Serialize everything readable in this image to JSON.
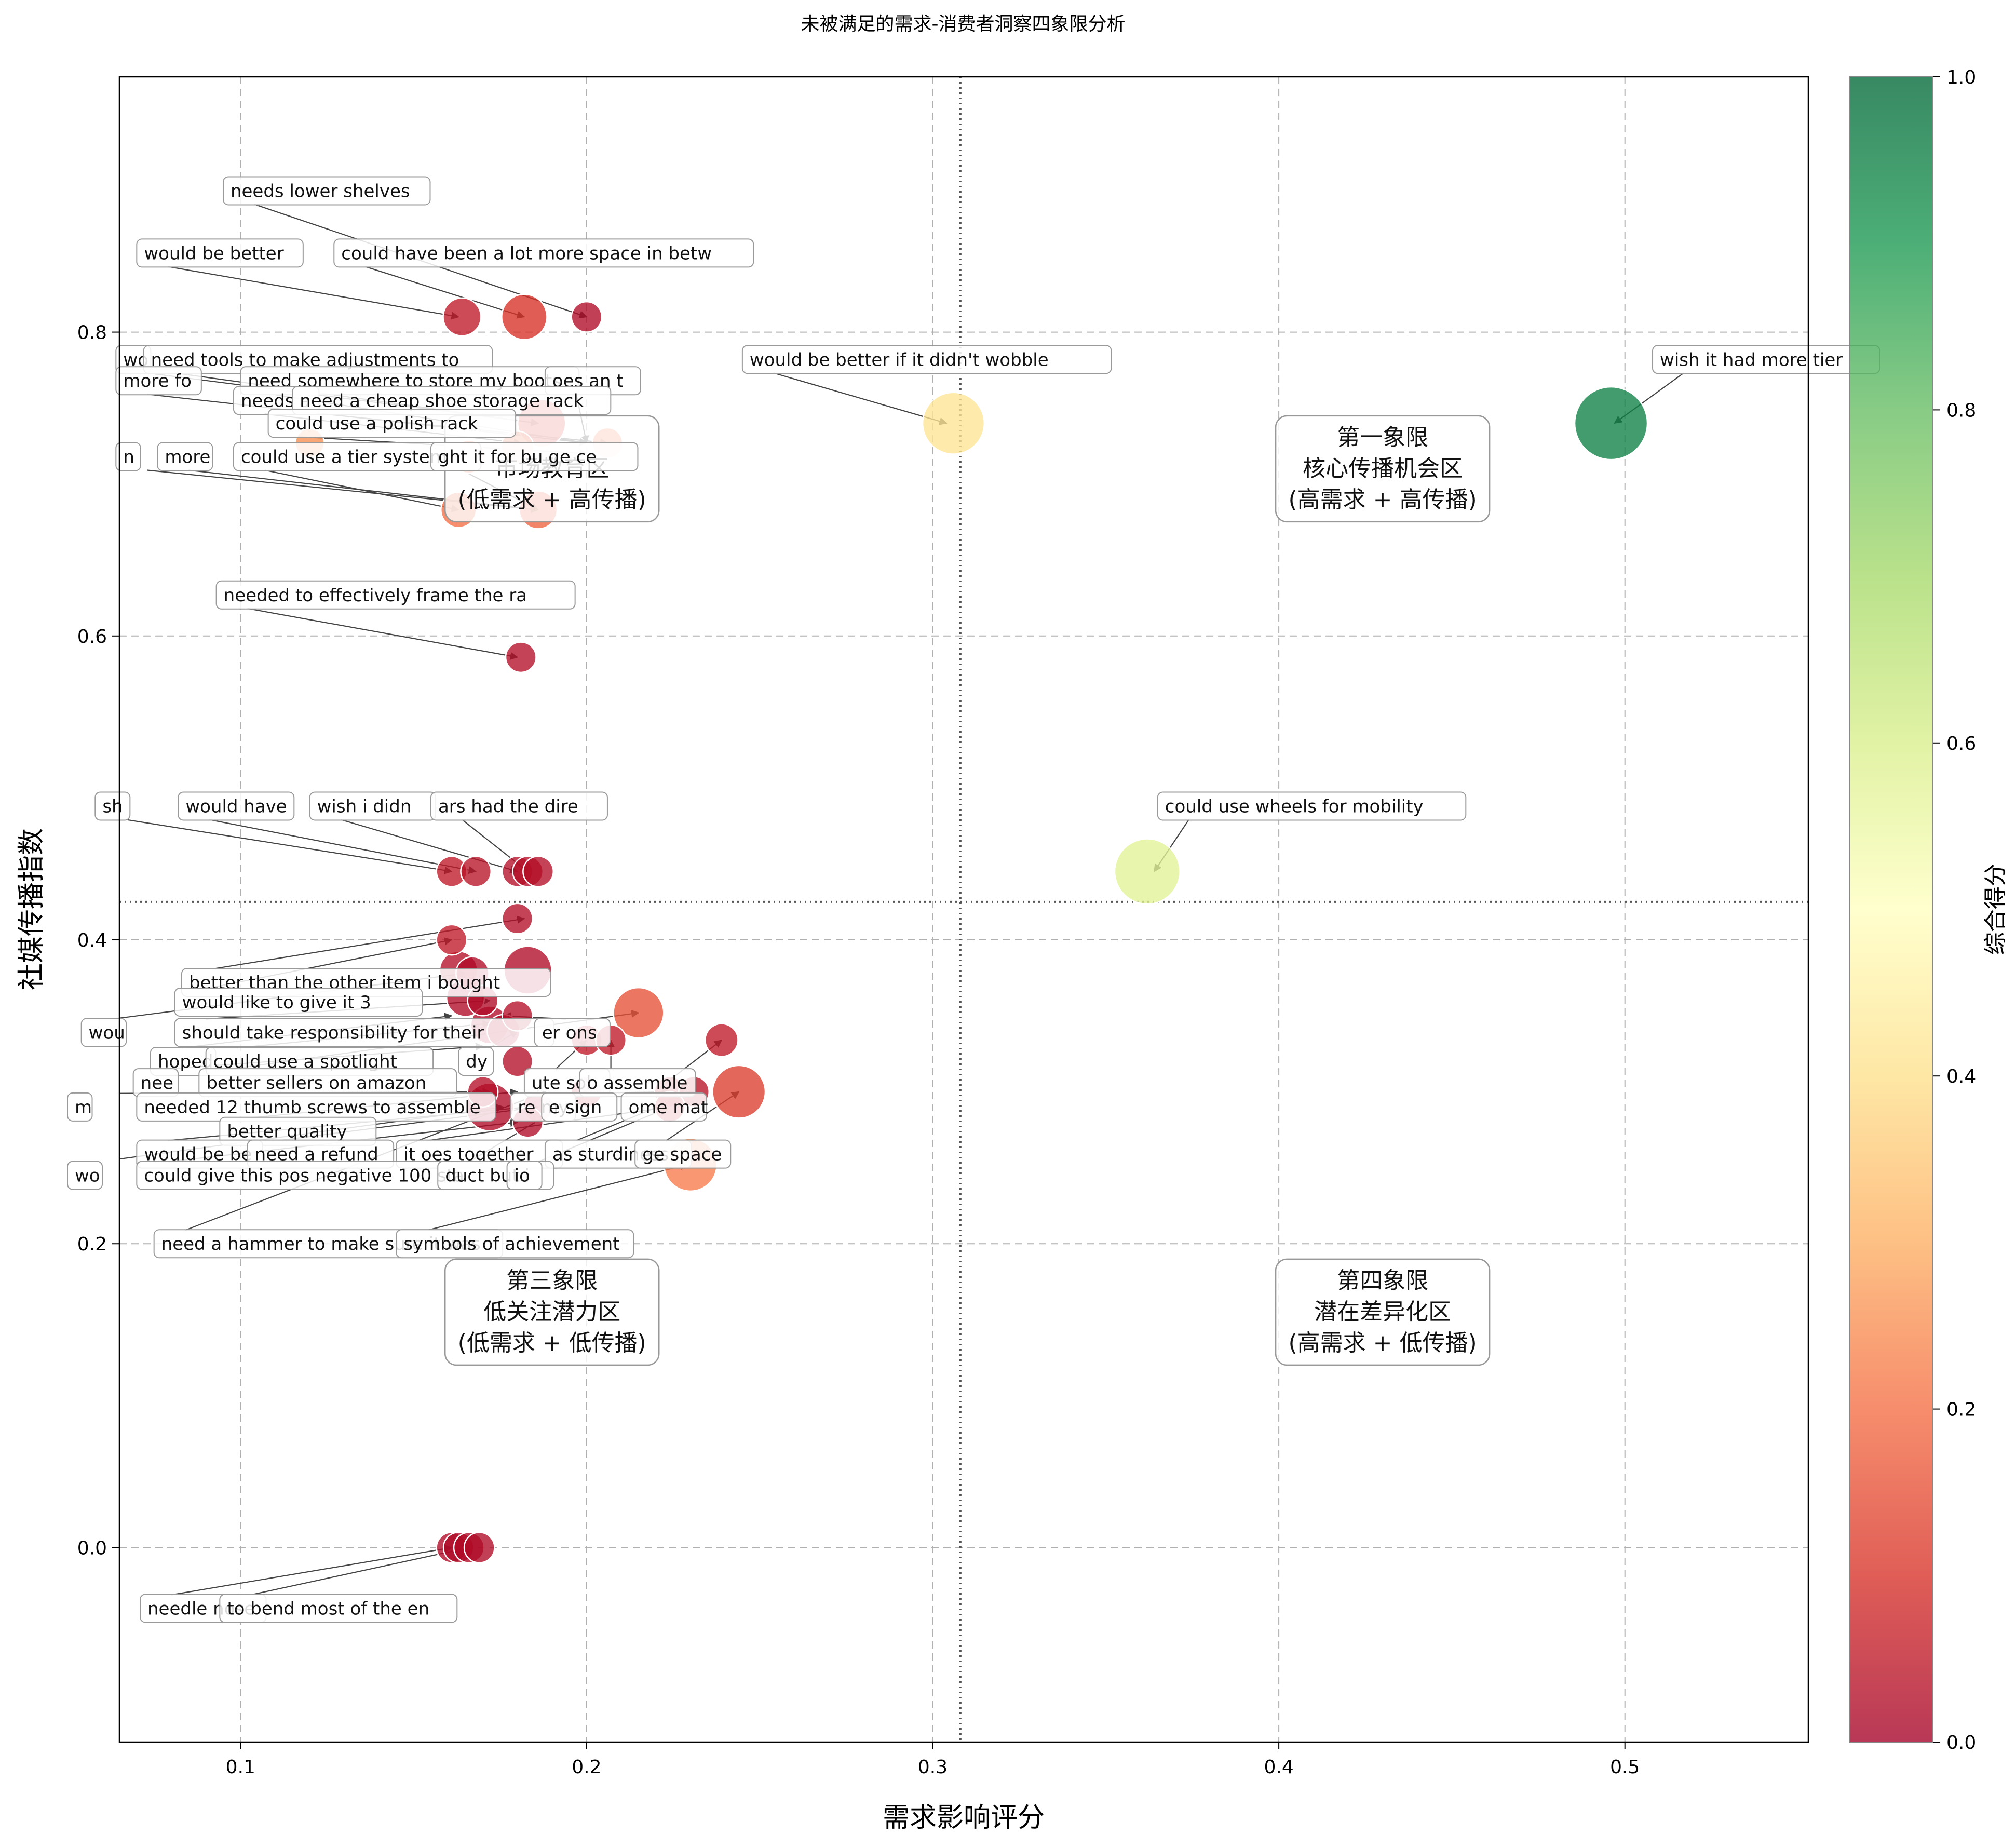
{
  "chart_data": {
    "type": "scatter",
    "title": "未被满足的需求-消费者洞察四象限分析",
    "xlabel": "需求影响评分",
    "ylabel": "社媒传播指数",
    "colorbar_label": "综合得分",
    "xlim": [
      0.065,
      0.553
    ],
    "ylim": [
      -0.128,
      0.968
    ],
    "x_ticks": [
      0.1,
      0.2,
      0.3,
      0.4,
      0.5
    ],
    "y_ticks": [
      0.0,
      0.2,
      0.4,
      0.6,
      0.8
    ],
    "colorbar_ticks": [
      0.0,
      0.2,
      0.4,
      0.6,
      0.8,
      1.0
    ],
    "colorbar_range": [
      0,
      1
    ],
    "colormap": "RdYlGn",
    "grid": true,
    "reference_lines": {
      "x": 0.308,
      "y": 0.425
    },
    "quadrants": [
      {
        "name": "quadrant-1",
        "lines": [
          "第一象限",
          "核心传播机会区",
          "(高需求 + 高传播)"
        ],
        "x": 0.43,
        "y": 0.71
      },
      {
        "name": "quadrant-2",
        "lines": [
          "",
          "市场教育区",
          "(低需求 + 高传播)"
        ],
        "x": 0.19,
        "y": 0.71
      },
      {
        "name": "quadrant-3",
        "lines": [
          "第三象限",
          "低关注潜力区",
          "(低需求 + 低传播)"
        ],
        "x": 0.19,
        "y": 0.155
      },
      {
        "name": "quadrant-4",
        "lines": [
          "第四象限",
          "潜在差异化区",
          "(高需求 + 低传播)"
        ],
        "x": 0.43,
        "y": 0.155
      }
    ],
    "points": [
      {
        "x": 0.496,
        "y": 0.74,
        "size": 1.0,
        "score": 0.95,
        "label": "wish it had more tier",
        "lx": 0.508,
        "ly": 0.78
      },
      {
        "x": 0.362,
        "y": 0.445,
        "size": 0.85,
        "score": 0.58,
        "label": "could use wheels for mobility",
        "lx": 0.365,
        "ly": 0.488
      },
      {
        "x": 0.306,
        "y": 0.74,
        "size": 0.78,
        "score": 0.42,
        "label": "would be better if it didn't wobble",
        "lx": 0.245,
        "ly": 0.782
      },
      {
        "x": 0.2,
        "y": 0.81,
        "size": 0.15,
        "score": 0.02,
        "label": "needs lower shelves",
        "lx": 0.095,
        "ly": 0.893
      },
      {
        "x": 0.164,
        "y": 0.81,
        "size": 0.3,
        "score": 0.05,
        "label": "would be better",
        "lx": 0.07,
        "ly": 0.852
      },
      {
        "x": 0.182,
        "y": 0.81,
        "size": 0.45,
        "score": 0.1,
        "label": "could have been a lot more space in betw",
        "lx": 0.127,
        "ly": 0.852
      },
      {
        "x": 0.187,
        "y": 0.74,
        "size": 0.5,
        "score": 0.12,
        "label": "",
        "lx": null,
        "ly": null
      },
      {
        "x": 0.206,
        "y": 0.727,
        "size": 0.15,
        "score": 0.22,
        "label": "",
        "lx": null,
        "ly": null
      },
      {
        "x": 0.18,
        "y": 0.724,
        "size": 0.2,
        "score": 0.2,
        "label": "",
        "lx": null,
        "ly": null
      },
      {
        "x": 0.186,
        "y": 0.683,
        "size": 0.3,
        "score": 0.18,
        "label": "",
        "lx": null,
        "ly": null
      },
      {
        "x": 0.163,
        "y": 0.683,
        "size": 0.25,
        "score": 0.2,
        "label": "",
        "lx": null,
        "ly": null
      },
      {
        "x": 0.12,
        "y": 0.727,
        "size": 0.12,
        "score": 0.25,
        "label": "",
        "lx": null,
        "ly": null
      },
      {
        "x": 0.166,
        "y": 0.718,
        "size": 0.2,
        "score": 0.22,
        "label": "",
        "lx": null,
        "ly": null
      },
      {
        "x": 0.181,
        "y": 0.586,
        "size": 0.15,
        "score": 0.03,
        "label": "needed to effectively frame the ra",
        "lx": 0.093,
        "ly": 0.627
      },
      {
        "x": 0.161,
        "y": 0.445,
        "size": 0.15,
        "score": 0.05,
        "label": "sh",
        "lx": null,
        "ly": null
      },
      {
        "x": 0.168,
        "y": 0.445,
        "size": 0.15,
        "score": 0.04,
        "label": "would have",
        "lx": null,
        "ly": null
      },
      {
        "x": 0.18,
        "y": 0.445,
        "size": 0.15,
        "score": 0.03,
        "label": "wish i didn",
        "lx": null,
        "ly": null
      },
      {
        "x": 0.183,
        "y": 0.445,
        "size": 0.15,
        "score": 0.03,
        "label": "ars had the dire",
        "lx": null,
        "ly": null
      },
      {
        "x": 0.186,
        "y": 0.445,
        "size": 0.15,
        "score": 0.03,
        "label": "",
        "lx": null,
        "ly": null
      },
      {
        "x": 0.18,
        "y": 0.414,
        "size": 0.15,
        "score": 0.03,
        "label": "",
        "lx": null,
        "ly": null
      },
      {
        "x": 0.161,
        "y": 0.4,
        "size": 0.15,
        "score": 0.05,
        "label": "",
        "lx": null,
        "ly": null
      },
      {
        "x": 0.183,
        "y": 0.38,
        "size": 0.5,
        "score": 0.02,
        "label": "",
        "lx": null,
        "ly": null
      },
      {
        "x": 0.163,
        "y": 0.38,
        "size": 0.3,
        "score": 0.03,
        "label": "",
        "lx": null,
        "ly": null
      },
      {
        "x": 0.167,
        "y": 0.378,
        "size": 0.2,
        "score": 0.02,
        "label": "",
        "lx": null,
        "ly": null
      },
      {
        "x": 0.165,
        "y": 0.362,
        "size": 0.3,
        "score": 0.02,
        "label": "",
        "lx": null,
        "ly": null
      },
      {
        "x": 0.17,
        "y": 0.36,
        "size": 0.15,
        "score": 0.02,
        "label": "",
        "lx": null,
        "ly": null
      },
      {
        "x": 0.172,
        "y": 0.344,
        "size": 0.3,
        "score": 0.02,
        "label": "",
        "lx": null,
        "ly": null
      },
      {
        "x": 0.18,
        "y": 0.35,
        "size": 0.15,
        "score": 0.03,
        "label": "",
        "lx": null,
        "ly": null
      },
      {
        "x": 0.176,
        "y": 0.34,
        "size": 0.2,
        "score": 0.02,
        "label": "",
        "lx": null,
        "ly": null
      },
      {
        "x": 0.215,
        "y": 0.352,
        "size": 0.55,
        "score": 0.15,
        "label": "",
        "lx": null,
        "ly": null
      },
      {
        "x": 0.2,
        "y": 0.334,
        "size": 0.15,
        "score": 0.05,
        "label": "",
        "lx": null,
        "ly": null
      },
      {
        "x": 0.207,
        "y": 0.334,
        "size": 0.15,
        "score": 0.05,
        "label": "",
        "lx": null,
        "ly": null
      },
      {
        "x": 0.239,
        "y": 0.334,
        "size": 0.2,
        "score": 0.05,
        "label": "",
        "lx": null,
        "ly": null
      },
      {
        "x": 0.18,
        "y": 0.32,
        "size": 0.15,
        "score": 0.03,
        "label": "",
        "lx": null,
        "ly": null
      },
      {
        "x": 0.17,
        "y": 0.3,
        "size": 0.15,
        "score": 0.03,
        "label": "",
        "lx": null,
        "ly": null
      },
      {
        "x": 0.244,
        "y": 0.3,
        "size": 0.6,
        "score": 0.12,
        "label": "",
        "lx": null,
        "ly": null
      },
      {
        "x": 0.224,
        "y": 0.3,
        "size": 0.15,
        "score": 0.05,
        "label": "",
        "lx": null,
        "ly": null
      },
      {
        "x": 0.231,
        "y": 0.3,
        "size": 0.15,
        "score": 0.04,
        "label": "",
        "lx": null,
        "ly": null
      },
      {
        "x": 0.2,
        "y": 0.3,
        "size": 0.15,
        "score": 0.05,
        "label": "",
        "lx": null,
        "ly": null
      },
      {
        "x": 0.172,
        "y": 0.29,
        "size": 0.5,
        "score": 0.02,
        "label": "",
        "lx": null,
        "ly": null
      },
      {
        "x": 0.186,
        "y": 0.29,
        "size": 0.15,
        "score": 0.02,
        "label": "",
        "lx": null,
        "ly": null
      },
      {
        "x": 0.224,
        "y": 0.29,
        "size": 0.15,
        "score": 0.05,
        "label": "",
        "lx": null,
        "ly": null
      },
      {
        "x": 0.183,
        "y": 0.28,
        "size": 0.15,
        "score": 0.02,
        "label": "",
        "lx": null,
        "ly": null
      },
      {
        "x": 0.23,
        "y": 0.252,
        "size": 0.6,
        "score": 0.22,
        "label": "",
        "lx": null,
        "ly": null
      },
      {
        "x": 0.161,
        "y": 0.0,
        "size": 0.15,
        "score": 0.02,
        "label": "",
        "lx": null,
        "ly": null
      },
      {
        "x": 0.163,
        "y": 0.0,
        "size": 0.15,
        "score": 0.02,
        "label": "",
        "lx": null,
        "ly": null
      },
      {
        "x": 0.166,
        "y": 0.0,
        "size": 0.15,
        "score": 0.02,
        "label": "",
        "lx": null,
        "ly": null
      },
      {
        "x": 0.169,
        "y": 0.0,
        "size": 0.15,
        "score": 0.02,
        "label": "",
        "lx": null,
        "ly": null
      }
    ],
    "annotations": [
      {
        "text": "would be better",
        "lx": 0.07,
        "ly": 0.852,
        "tx": 0.163,
        "ty": 0.81
      },
      {
        "text": "could have been a lot more space in betw",
        "lx": 0.127,
        "ly": 0.852,
        "tx": 0.182,
        "ty": 0.81
      },
      {
        "text": "needs lower shelves",
        "lx": 0.095,
        "ly": 0.893,
        "tx": 0.2,
        "ty": 0.81
      },
      {
        "text": "would be better if it didn't wobble",
        "lx": 0.245,
        "ly": 0.782,
        "tx": 0.304,
        "ty": 0.74
      },
      {
        "text": "wish it had more tier",
        "lx": 0.508,
        "ly": 0.782,
        "tx": 0.497,
        "ty": 0.74
      },
      {
        "text": "wo",
        "lx": 0.064,
        "ly": 0.782,
        "tx": 0.186,
        "ty": 0.74
      },
      {
        "text": "need tools to make adjustments to",
        "lx": 0.072,
        "ly": 0.782,
        "tx": 0.186,
        "ty": 0.74
      },
      {
        "text": "more fo",
        "lx": 0.064,
        "ly": 0.768,
        "tx": 0.2,
        "ty": 0.727
      },
      {
        "text": "need somewhere to store my boots",
        "lx": 0.1,
        "ly": 0.768,
        "tx": 0.2,
        "ty": 0.727
      },
      {
        "text": "oes an t",
        "lx": 0.188,
        "ly": 0.768,
        "tx": 0.2,
        "ty": 0.727
      },
      {
        "text": "needs a",
        "lx": 0.098,
        "ly": 0.755,
        "tx": 0.181,
        "ty": 0.727
      },
      {
        "text": "need a cheap shoe storage rack",
        "lx": 0.115,
        "ly": 0.755,
        "tx": 0.206,
        "ty": 0.727
      },
      {
        "text": "could use a polish rack",
        "lx": 0.108,
        "ly": 0.74,
        "tx": 0.2,
        "ty": 0.72
      },
      {
        "text": "n",
        "lx": 0.064,
        "ly": 0.718,
        "tx": 0.186,
        "ty": 0.683
      },
      {
        "text": "more",
        "lx": 0.076,
        "ly": 0.718,
        "tx": 0.186,
        "ty": 0.683
      },
      {
        "text": "could use a tier system",
        "lx": 0.098,
        "ly": 0.718,
        "tx": 0.163,
        "ty": 0.683
      },
      {
        "text": "ght it for bu ge ce",
        "lx": 0.155,
        "ly": 0.718,
        "tx": 0.186,
        "ty": 0.683
      },
      {
        "text": "needed to effectively frame the ra",
        "lx": 0.093,
        "ly": 0.627,
        "tx": 0.18,
        "ty": 0.586
      },
      {
        "text": "sh",
        "lx": 0.058,
        "ly": 0.488,
        "tx": 0.161,
        "ty": 0.445
      },
      {
        "text": "would have",
        "lx": 0.082,
        "ly": 0.488,
        "tx": 0.168,
        "ty": 0.445
      },
      {
        "text": "wish i didn",
        "lx": 0.12,
        "ly": 0.488,
        "tx": 0.18,
        "ty": 0.445
      },
      {
        "text": "ars had the dire",
        "lx": 0.155,
        "ly": 0.488,
        "tx": 0.183,
        "ty": 0.445
      },
      {
        "text": "could use wheels for mobility",
        "lx": 0.365,
        "ly": 0.488,
        "tx": 0.364,
        "ty": 0.445
      },
      {
        "text": "better than the other item i bought",
        "lx": 0.083,
        "ly": 0.372,
        "tx": 0.182,
        "ty": 0.414
      },
      {
        "text": "would like to give it 3",
        "lx": 0.081,
        "ly": 0.359,
        "tx": 0.161,
        "ty": 0.4
      },
      {
        "text": "wou",
        "lx": 0.054,
        "ly": 0.339,
        "tx": 0.165,
        "ty": 0.378
      },
      {
        "text": "should take responsibility for their",
        "lx": 0.081,
        "ly": 0.339,
        "tx": 0.172,
        "ty": 0.36
      },
      {
        "text": "er ons",
        "lx": 0.185,
        "ly": 0.339,
        "tx": 0.176,
        "ty": 0.35
      },
      {
        "text": "hoped",
        "lx": 0.074,
        "ly": 0.32,
        "tx": 0.161,
        "ty": 0.35
      },
      {
        "text": "could use a spotlight",
        "lx": 0.09,
        "ly": 0.32,
        "tx": 0.172,
        "ty": 0.345
      },
      {
        "text": "dy",
        "lx": 0.163,
        "ly": 0.32,
        "tx": 0.18,
        "ty": 0.34
      },
      {
        "text": "nee",
        "lx": 0.069,
        "ly": 0.306,
        "tx": 0.17,
        "ty": 0.33
      },
      {
        "text": "better sellers on amazon",
        "lx": 0.088,
        "ly": 0.306,
        "tx": 0.215,
        "ty": 0.352
      },
      {
        "text": "ute sol",
        "lx": 0.182,
        "ly": 0.306,
        "tx": 0.2,
        "ty": 0.334
      },
      {
        "text": "o assemble",
        "lx": 0.198,
        "ly": 0.306,
        "tx": 0.207,
        "ty": 0.334
      },
      {
        "text": "m",
        "lx": 0.05,
        "ly": 0.29,
        "tx": 0.17,
        "ty": 0.3
      },
      {
        "text": "needed 12 thumb screws to assemble",
        "lx": 0.07,
        "ly": 0.29,
        "tx": 0.172,
        "ty": 0.3
      },
      {
        "text": "re my",
        "lx": 0.178,
        "ly": 0.29,
        "tx": 0.186,
        "ty": 0.3
      },
      {
        "text": "e sign",
        "lx": 0.187,
        "ly": 0.29,
        "tx": 0.224,
        "ty": 0.3
      },
      {
        "text": "ome mat",
        "lx": 0.21,
        "ly": 0.29,
        "tx": 0.239,
        "ty": 0.334
      },
      {
        "text": "better quality",
        "lx": 0.094,
        "ly": 0.274,
        "tx": 0.18,
        "ty": 0.3
      },
      {
        "text": "would be be",
        "lx": 0.07,
        "ly": 0.259,
        "tx": 0.183,
        "ty": 0.29
      },
      {
        "text": "need a refund",
        "lx": 0.102,
        "ly": 0.259,
        "tx": 0.186,
        "ty": 0.29
      },
      {
        "text": "it oes together",
        "lx": 0.145,
        "ly": 0.259,
        "tx": 0.224,
        "ty": 0.29
      },
      {
        "text": "as sturdiness",
        "lx": 0.188,
        "ly": 0.259,
        "tx": 0.231,
        "ty": 0.3
      },
      {
        "text": "ge space",
        "lx": 0.214,
        "ly": 0.259,
        "tx": 0.244,
        "ty": 0.3
      },
      {
        "text": "wo",
        "lx": 0.05,
        "ly": 0.245,
        "tx": 0.176,
        "ty": 0.29
      },
      {
        "text": "could give this pos negative 100 sta",
        "lx": 0.07,
        "ly": 0.245,
        "tx": 0.18,
        "ty": 0.28
      },
      {
        "text": "duct but i",
        "lx": 0.157,
        "ly": 0.245,
        "tx": 0.2,
        "ty": 0.3
      },
      {
        "text": "io",
        "lx": 0.177,
        "ly": 0.245,
        "tx": 0.224,
        "ty": 0.29
      },
      {
        "text": "need a hammer to make sure it was",
        "lx": 0.075,
        "ly": 0.2,
        "tx": 0.188,
        "ty": 0.3
      },
      {
        "text": "symbols of achievement",
        "lx": 0.145,
        "ly": 0.2,
        "tx": 0.229,
        "ty": 0.252
      },
      {
        "text": "needle nose",
        "lx": 0.071,
        "ly": -0.04,
        "tx": 0.161,
        "ty": 0.0
      },
      {
        "text": "to bend most of the en",
        "lx": 0.094,
        "ly": -0.04,
        "tx": 0.166,
        "ty": 0.0
      }
    ]
  }
}
